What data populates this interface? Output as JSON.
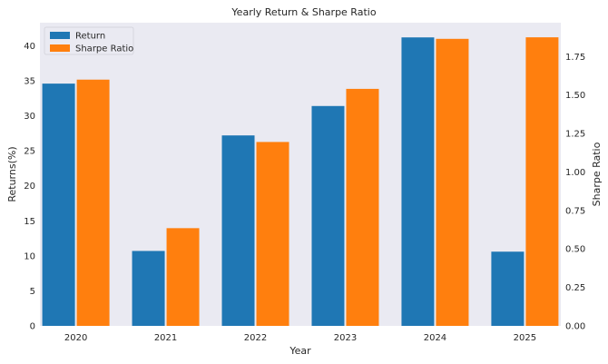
{
  "chart_data": {
    "type": "bar",
    "title": "Yearly Return & Sharpe Ratio",
    "xlabel": "Year",
    "ylabel": "Returns(%)",
    "ylabel_right": "Sharpe Ratio",
    "categories": [
      "2020",
      "2021",
      "2022",
      "2023",
      "2024",
      "2025"
    ],
    "series": [
      {
        "name": "Return",
        "axis": "left",
        "color": "#1f77b4",
        "values": [
          34.6,
          10.7,
          27.2,
          31.4,
          41.2,
          10.6
        ]
      },
      {
        "name": "Sharpe Ratio",
        "axis": "right",
        "color": "#ff7f0e",
        "values": [
          1.6,
          0.635,
          1.195,
          1.54,
          1.865,
          1.875
        ]
      }
    ],
    "ylim": [
      0,
      43.3
    ],
    "ylim_right": [
      0,
      1.97
    ],
    "yticks": [
      "0",
      "5",
      "10",
      "15",
      "20",
      "25",
      "30",
      "35",
      "40"
    ],
    "yticks_right": [
      "0.00",
      "0.25",
      "0.50",
      "0.75",
      "1.00",
      "1.25",
      "1.50",
      "1.75"
    ],
    "grid": false,
    "legend_position": "top-left",
    "background": "#eaeaf2"
  }
}
